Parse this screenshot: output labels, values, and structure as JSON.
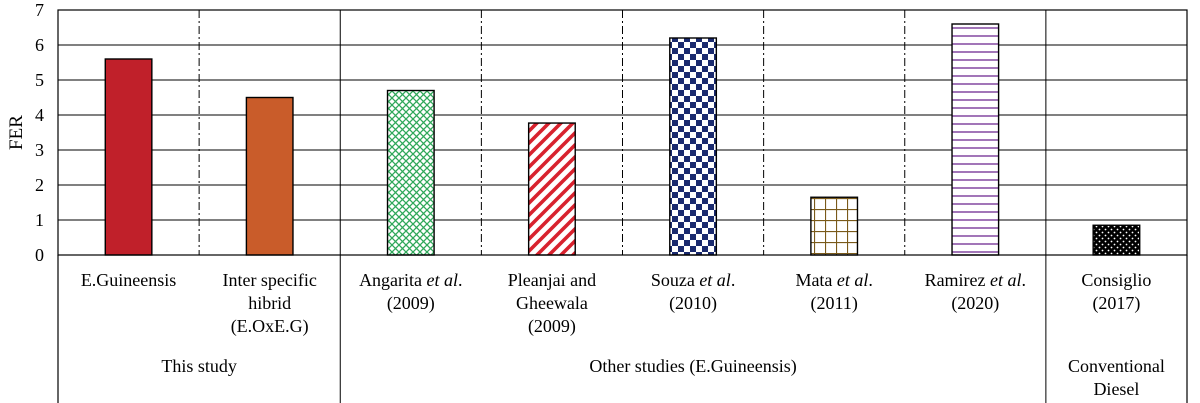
{
  "chart_data": {
    "type": "bar",
    "ylabel": "FER",
    "ylim": [
      0,
      7
    ],
    "yticks": [
      "0",
      "1",
      "2",
      "3",
      "4",
      "5",
      "6",
      "7"
    ],
    "grid": true,
    "categories": [
      {
        "lines": [
          {
            "text": "E.Guineensis"
          }
        ],
        "value": 5.6,
        "color": "#c0202a",
        "fill": "solid"
      },
      {
        "lines": [
          {
            "text": "Inter specific"
          },
          {
            "text": "hibrid"
          },
          {
            "text": "(E.OxE.G)"
          }
        ],
        "value": 4.5,
        "color": "#c95c2a",
        "fill": "solid"
      },
      {
        "lines": [
          {
            "parts": [
              {
                "t": "Angarita "
              },
              {
                "t": "et al",
                "i": true
              },
              {
                "t": "."
              }
            ]
          },
          {
            "text": "(2009)"
          }
        ],
        "value": 4.7,
        "color": "#2fa85a",
        "fill": "lattice"
      },
      {
        "lines": [
          {
            "text": "Pleanjai and"
          },
          {
            "text": "Gheewala"
          },
          {
            "text": "(2009)"
          }
        ],
        "value": 3.77,
        "color": "#d8222e",
        "fill": "diagonal"
      },
      {
        "lines": [
          {
            "parts": [
              {
                "t": "Souza "
              },
              {
                "t": "et al",
                "i": true
              },
              {
                "t": "."
              }
            ]
          },
          {
            "text": "(2010)"
          }
        ],
        "value": 6.2,
        "color": "#1a2a6e",
        "fill": "checker"
      },
      {
        "lines": [
          {
            "parts": [
              {
                "t": "Mata "
              },
              {
                "t": "et al",
                "i": true
              },
              {
                "t": "."
              }
            ]
          },
          {
            "text": "(2011)"
          }
        ],
        "value": 1.65,
        "color": "#7a5a1a",
        "fill": "grid"
      },
      {
        "lines": [
          {
            "parts": [
              {
                "t": "Ramirez "
              },
              {
                "t": "et al",
                "i": true
              },
              {
                "t": "."
              }
            ]
          },
          {
            "text": "(2020)"
          }
        ],
        "value": 6.6,
        "color": "#7a3a9a",
        "fill": "hlines"
      },
      {
        "lines": [
          {
            "text": "Consiglio"
          },
          {
            "text": "(2017)"
          }
        ],
        "value": 0.85,
        "color": "#000000",
        "fill": "dots"
      }
    ],
    "groups": [
      {
        "lines": [
          "This study"
        ],
        "from": 0,
        "to": 1
      },
      {
        "lines": [
          "Other studies (E.Guineensis)"
        ],
        "from": 2,
        "to": 6
      },
      {
        "lines": [
          "Conventional",
          "Diesel"
        ],
        "from": 7,
        "to": 7
      }
    ],
    "group_separators_after": [
      1,
      6
    ]
  }
}
